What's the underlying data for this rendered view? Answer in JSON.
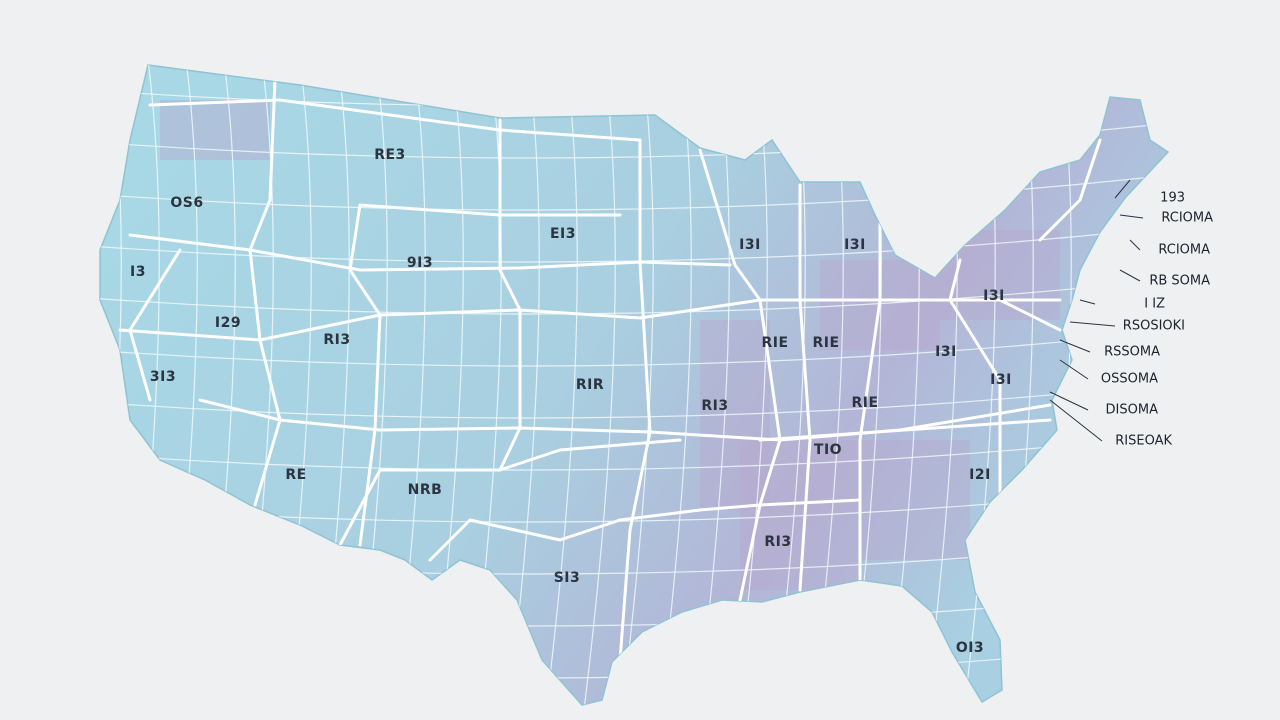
{
  "map": {
    "labels": [
      "RE3",
      "OS6",
      "EI3",
      "9I3",
      "I3I",
      "I3I",
      "I3",
      "I29",
      "RI3",
      "I3I",
      "RIE",
      "RIE",
      "I3I",
      "3I3",
      "RIR",
      "RI3",
      "RIE",
      "I3I",
      "TIO",
      "I2I",
      "RE",
      "NRB",
      "RI3",
      "SI3",
      "OI3"
    ],
    "callouts": [
      "193",
      "RCIOMA",
      "RCIOMA",
      "RB SOMA",
      "I IZ",
      "RSOSIOKI",
      "RSSOMA",
      "OSSOMA",
      "DISOMA",
      "RISEOAK"
    ]
  }
}
